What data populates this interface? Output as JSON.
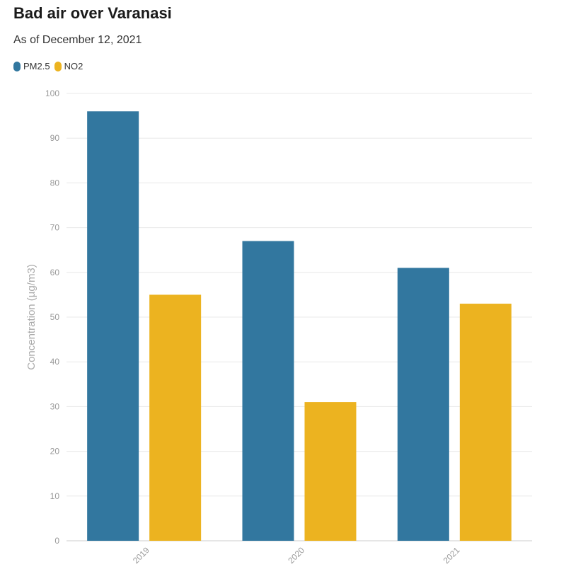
{
  "chart_data": {
    "type": "bar",
    "title": "Bad air over Varanasi",
    "subtitle": "As of December 12, 2021",
    "ylabel": "Concentration (µg/m3)",
    "xlabel": "",
    "categories": [
      "2019",
      "2020",
      "2021"
    ],
    "series": [
      {
        "name": "PM2.5",
        "color": "#32779f",
        "values": [
          96,
          67,
          61
        ]
      },
      {
        "name": "NO2",
        "color": "#ecb320",
        "values": [
          55,
          31,
          53
        ]
      }
    ],
    "ylim": [
      0,
      100
    ],
    "yticks": [
      0,
      10,
      20,
      30,
      40,
      50,
      60,
      70,
      80,
      90,
      100
    ],
    "grid": true,
    "legend_position": "top-left"
  }
}
